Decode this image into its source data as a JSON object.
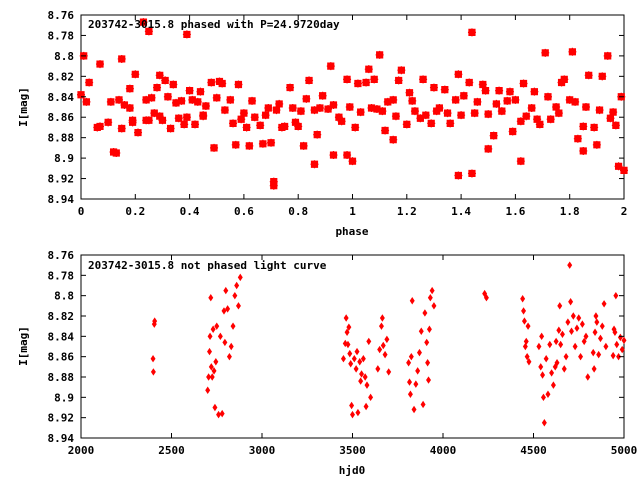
{
  "colors": {
    "points": "#ff0000",
    "axis": "#000000",
    "background": "#ffffff"
  },
  "chart_data": [
    {
      "type": "scatter",
      "title": "203742-3015.8 phased with P=24.9720day",
      "xlabel": "phase",
      "ylabel": "I[mag]",
      "xlim": [
        0,
        2
      ],
      "ylim": [
        8.94,
        8.76
      ],
      "y_inverted": true,
      "grid": false,
      "marker": "filled-star",
      "x_ticks": [
        "0",
        "0.2",
        "0.4",
        "0.6",
        "0.8",
        "1",
        "1.2",
        "1.4",
        "1.6",
        "1.8",
        "2"
      ],
      "y_ticks": [
        "8.76",
        "8.78",
        "8.8",
        "8.82",
        "8.84",
        "8.86",
        "8.88",
        "8.9",
        "8.92",
        "8.94"
      ],
      "x": [
        0.0,
        0.01,
        0.02,
        0.03,
        0.06,
        0.07,
        0.07,
        0.1,
        0.11,
        0.13,
        0.14,
        0.15,
        0.15,
        0.16,
        0.18,
        0.18,
        0.19,
        0.19,
        0.2,
        0.21,
        0.23,
        0.24,
        0.24,
        0.25,
        0.26,
        0.27,
        0.28,
        0.29,
        0.29,
        0.3,
        0.31,
        0.32,
        0.33,
        0.34,
        0.35,
        0.36,
        0.37,
        0.38,
        0.39,
        0.39,
        0.4,
        0.41,
        0.42,
        0.43,
        0.44,
        0.45,
        0.46,
        0.48,
        0.49,
        0.5,
        0.51,
        0.52,
        0.53,
        0.55,
        0.56,
        0.57,
        0.58,
        0.59,
        0.6,
        0.61,
        0.62,
        0.63,
        0.64,
        0.66,
        0.67,
        0.68,
        0.69,
        0.7,
        0.71,
        0.72,
        0.73,
        0.74,
        0.75,
        0.77,
        0.78,
        0.79,
        0.8,
        0.81,
        0.82,
        0.83,
        0.84,
        0.86,
        0.87,
        0.88,
        0.89,
        0.91,
        0.92,
        0.93,
        0.95,
        0.96,
        0.98,
        0.99,
        1.0,
        1.01,
        1.02,
        1.03,
        1.05,
        1.06,
        1.07,
        1.08,
        1.1,
        1.11,
        1.12,
        1.13,
        1.15,
        1.16,
        1.17,
        1.18,
        1.2,
        1.21,
        1.22,
        1.23,
        1.25,
        1.26,
        1.27,
        1.29,
        1.3,
        1.31,
        1.32,
        1.34,
        1.35,
        1.36,
        1.38,
        1.39,
        1.4,
        1.41,
        1.43,
        1.44,
        1.45,
        1.46,
        1.48,
        1.49,
        1.5,
        1.52,
        1.53,
        1.54,
        1.55,
        1.57,
        1.58,
        1.59,
        1.6,
        1.62,
        1.63,
        1.64,
        1.66,
        1.67,
        1.68,
        1.69,
        1.71,
        1.72,
        1.73,
        1.75,
        1.76,
        1.77,
        1.78,
        1.8,
        1.81,
        1.82,
        1.83,
        1.85,
        1.86,
        1.87,
        1.89,
        1.9,
        1.91,
        1.92,
        1.94,
        1.95,
        1.96,
        1.97,
        1.99,
        2.0
      ],
      "y": [
        8.838,
        8.8,
        8.845,
        8.826,
        8.87,
        8.869,
        8.808,
        8.865,
        8.845,
        8.895,
        8.843,
        8.803,
        8.871,
        8.848,
        8.832,
        8.851,
        8.865,
        8.863,
        8.818,
        8.875,
        8.767,
        8.843,
        8.863,
        8.863,
        8.841,
        8.856,
        8.831,
        8.859,
        8.819,
        8.863,
        8.824,
        8.84,
        8.871,
        8.828,
        8.846,
        8.861,
        8.844,
        8.867,
        8.86,
        8.779,
        8.834,
        8.843,
        8.867,
        8.845,
        8.835,
        8.858,
        8.849,
        8.826,
        8.89,
        8.841,
        8.825,
        8.827,
        8.853,
        8.843,
        8.866,
        8.887,
        8.828,
        8.862,
        8.856,
        8.87,
        8.888,
        8.844,
        8.86,
        8.868,
        8.886,
        8.858,
        8.851,
        8.885,
        8.927,
        8.853,
        8.847,
        8.87,
        8.869,
        8.831,
        8.851,
        8.865,
        8.869,
        8.854,
        8.888,
        8.842,
        8.824,
        8.853,
        8.877,
        8.851,
        8.839,
        8.852,
        8.81,
        8.848,
        8.86,
        8.864,
        8.823,
        8.85,
        8.903,
        8.87,
        8.827,
        8.855,
        8.826,
        8.813,
        8.851,
        8.823,
        8.799,
        8.854,
        8.873,
        8.845,
        8.843,
        8.859,
        8.824,
        8.814,
        8.867,
        8.836,
        8.844,
        8.854,
        8.861,
        8.823,
        8.858,
        8.866,
        8.831,
        8.854,
        8.851,
        8.833,
        8.856,
        8.866,
        8.843,
        8.818,
        8.858,
        8.839,
        8.826,
        8.777,
        8.856,
        8.845,
        8.828,
        8.834,
        8.857,
        8.878,
        8.847,
        8.834,
        8.854,
        8.844,
        8.835,
        8.874,
        8.843,
        8.864,
        8.827,
        8.859,
        8.851,
        8.835,
        8.862,
        8.867,
        8.797,
        8.84,
        8.862,
        8.85,
        8.856,
        8.826,
        8.823,
        8.843,
        8.796,
        8.845,
        8.881,
        8.869,
        8.85,
        8.819,
        8.87,
        8.887,
        8.853,
        8.82,
        8.8,
        8.861,
        8.855,
        8.868,
        8.84,
        8.912
      ],
      "x_extra": [
        0.71,
        0.86,
        1.44,
        1.39,
        1.85,
        1.98,
        1.62,
        0.12,
        0.25,
        1.09,
        0.98,
        1.15,
        0.93,
        0.45,
        1.5
      ],
      "y_extra": [
        8.923,
        8.906,
        8.915,
        8.917,
        8.893,
        8.908,
        8.903,
        8.894,
        8.776,
        8.852,
        8.897,
        8.882,
        8.897,
        8.859,
        8.891
      ]
    },
    {
      "type": "scatter",
      "title": "203742-3015.8 not phased light curve",
      "xlabel": "hjd0",
      "ylabel": "I[mag]",
      "xlim": [
        2000,
        5000
      ],
      "ylim": [
        8.94,
        8.76
      ],
      "y_inverted": true,
      "grid": false,
      "marker": "small-diamond",
      "x_ticks": [
        "2000",
        "2500",
        "3000",
        "3500",
        "4000",
        "4500",
        "5000"
      ],
      "y_ticks": [
        "8.76",
        "8.78",
        "8.8",
        "8.82",
        "8.84",
        "8.86",
        "8.88",
        "8.9",
        "8.92",
        "8.94"
      ],
      "x": [
        2398,
        2400,
        2405,
        2407,
        2700,
        2705,
        2710,
        2713,
        2717,
        2720,
        2725,
        2730,
        2735,
        2740,
        2745,
        2750,
        2760,
        2770,
        2780,
        2790,
        2795,
        2800,
        2810,
        2820,
        2830,
        2840,
        2850,
        2860,
        2870,
        2880,
        3450,
        3460,
        3465,
        3470,
        3475,
        3480,
        3485,
        3490,
        3495,
        3500,
        3510,
        3520,
        3525,
        3530,
        3540,
        3545,
        3550,
        3560,
        3570,
        3575,
        3580,
        3590,
        3600,
        3640,
        3650,
        3660,
        3665,
        3670,
        3680,
        3690,
        3700,
        3810,
        3815,
        3820,
        3825,
        3830,
        3840,
        3850,
        3860,
        3870,
        3880,
        3890,
        3900,
        3910,
        3915,
        3920,
        3925,
        3930,
        3940,
        3950,
        4230,
        4240,
        4440,
        4445,
        4450,
        4455,
        4460,
        4465,
        4470,
        4475,
        4530,
        4540,
        4545,
        4550,
        4555,
        4560,
        4570,
        4580,
        4590,
        4600,
        4610,
        4620,
        4625,
        4630,
        4640,
        4645,
        4650,
        4660,
        4670,
        4680,
        4690,
        4700,
        4705,
        4710,
        4720,
        4730,
        4740,
        4750,
        4760,
        4770,
        4780,
        4790,
        4800,
        4830,
        4835,
        4840,
        4845,
        4850,
        4860,
        4870,
        4880,
        4890,
        4900,
        4940,
        4945,
        4950,
        4955,
        4960,
        4970,
        4980,
        4990,
        5000
      ],
      "y": [
        8.862,
        8.875,
        8.828,
        8.825,
        8.893,
        8.88,
        8.855,
        8.84,
        8.802,
        8.87,
        8.88,
        8.833,
        8.874,
        8.91,
        8.865,
        8.83,
        8.917,
        8.84,
        8.916,
        8.815,
        8.846,
        8.795,
        8.813,
        8.86,
        8.85,
        8.83,
        8.8,
        8.79,
        8.81,
        8.782,
        8.862,
        8.847,
        8.822,
        8.836,
        8.848,
        8.831,
        8.857,
        8.867,
        8.908,
        8.917,
        8.862,
        8.872,
        8.855,
        8.915,
        8.865,
        8.884,
        8.877,
        8.862,
        8.88,
        8.909,
        8.888,
        8.845,
        8.9,
        8.872,
        8.853,
        8.83,
        8.822,
        8.849,
        8.858,
        8.843,
        8.875,
        8.866,
        8.885,
        8.897,
        8.86,
        8.805,
        8.912,
        8.887,
        8.874,
        8.856,
        8.835,
        8.907,
        8.817,
        8.846,
        8.866,
        8.883,
        8.833,
        8.802,
        8.795,
        8.81,
        8.798,
        8.802,
        8.803,
        8.815,
        8.825,
        8.85,
        8.845,
        8.86,
        8.83,
        8.865,
        8.85,
        8.87,
        8.84,
        8.878,
        8.9,
        8.925,
        8.862,
        8.897,
        8.848,
        8.876,
        8.888,
        8.87,
        8.845,
        8.866,
        8.834,
        8.81,
        8.848,
        8.838,
        8.872,
        8.86,
        8.826,
        8.77,
        8.806,
        8.835,
        8.82,
        8.85,
        8.832,
        8.822,
        8.86,
        8.828,
        8.845,
        8.84,
        8.88,
        8.856,
        8.872,
        8.836,
        8.82,
        8.826,
        8.858,
        8.842,
        8.83,
        8.808,
        8.85,
        8.859,
        8.833,
        8.836,
        8.8,
        8.848,
        8.86,
        8.841,
        8.853,
        8.844
      ]
    }
  ]
}
